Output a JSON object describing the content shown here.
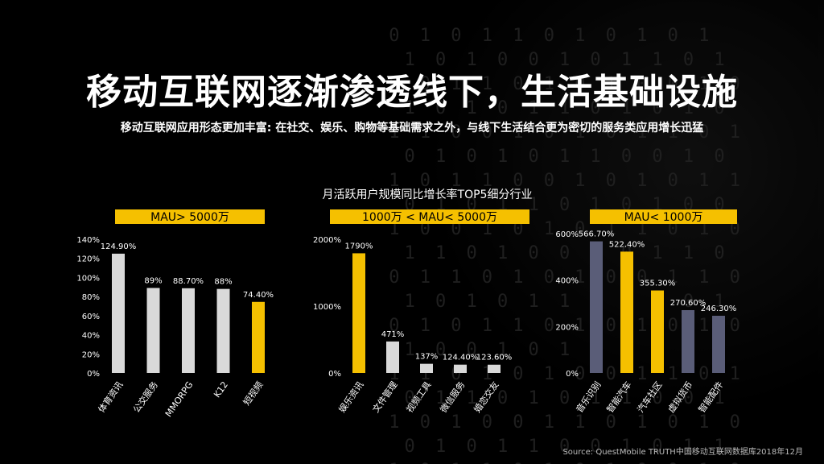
{
  "title": "移动互联网逐渐渗透线下，生活基础设施",
  "subtitle": "移动互联网应用形态更加丰富: 在社交、娱乐、购物等基础需求之外，与线下生活结合更为密切的服务类应用增长迅猛",
  "chart_heading": "月活跃用户规模同比增长率TOP5细分行业",
  "source": "Source: QuestMobile TRUTH中国移动互联网数据库2018年12月",
  "colors": {
    "highlight": "#f5c000",
    "bar_light": "#d9d9d9",
    "bar_slate": "#5a5d78",
    "banner": "#f5c000"
  },
  "chart_data": [
    {
      "type": "bar",
      "banner": "MAU> 5000万",
      "categories": [
        "体育资讯",
        "公交服务",
        "MMORPG",
        "K12",
        "短视频"
      ],
      "values": [
        124.9,
        89,
        88.7,
        88,
        74.4
      ],
      "value_labels": [
        "124.90%",
        "89%",
        "88.70%",
        "88%",
        "74.40%"
      ],
      "highlight_index": 4,
      "base_color": "light",
      "ylim": [
        0,
        140
      ],
      "yticks": [
        "0%",
        "20%",
        "40%",
        "60%",
        "80%",
        "100%",
        "120%",
        "140%"
      ],
      "xlabel": "",
      "ylabel": ""
    },
    {
      "type": "bar",
      "banner": "1000万 < MAU< 5000万",
      "categories": [
        "娱乐资讯",
        "文件管理",
        "视频工具",
        "微信服务",
        "婚恋交友"
      ],
      "values": [
        1790,
        471,
        137,
        124.4,
        123.6
      ],
      "value_labels": [
        "1790%",
        "471%",
        "137%",
        "124.40%",
        "123.60%"
      ],
      "highlight_index": 0,
      "base_color": "light",
      "ylim": [
        0,
        2000
      ],
      "yticks": [
        "0%",
        "1000%",
        "2000%"
      ],
      "xlabel": "",
      "ylabel": ""
    },
    {
      "type": "bar",
      "banner": "MAU< 1000万",
      "categories": [
        "音乐识别",
        "智能汽车",
        "汽车社区",
        "虚拟货币",
        "智能配件"
      ],
      "values": [
        566.7,
        522.4,
        355.3,
        270.6,
        246.3
      ],
      "value_labels": [
        "566.70%",
        "522.40%",
        "355.30%",
        "270.60%",
        "246.30%"
      ],
      "highlight_index": [
        1,
        2
      ],
      "base_color": "slate",
      "ylim": [
        0,
        600
      ],
      "yticks": [
        "0%",
        "200%",
        "400%",
        "600%"
      ],
      "xlabel": "",
      "ylabel": ""
    }
  ]
}
